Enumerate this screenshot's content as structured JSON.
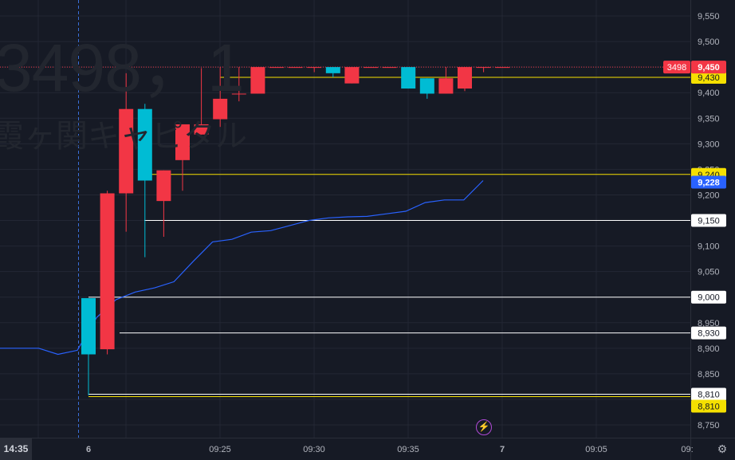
{
  "watermark": {
    "ticker": "3498，1",
    "name": "霞ヶ関キャピタル"
  },
  "colors": {
    "background": "#161a25",
    "grid": "#232734",
    "axis_text": "#b2b5be",
    "up": "#f23645",
    "down": "#00bcd4",
    "vwap": "#2962ff",
    "hline_white": "#ffffff",
    "hline_yellow": "#f5e000",
    "current_price_line": "#f23645"
  },
  "left_time_label": "14:35",
  "icons": {
    "bolt": "lightning-icon",
    "settings": "gear-icon"
  },
  "chart_data": {
    "type": "candlestick",
    "title": "",
    "y_ticks": [
      8750,
      8800,
      8850,
      8900,
      8950,
      9000,
      9050,
      9100,
      9150,
      9200,
      9250,
      9300,
      9350,
      9400,
      9450,
      9500,
      9550
    ],
    "y_tick_labels": [
      "8,750",
      "8,800",
      "8,850",
      "8,900",
      "8,950",
      "9,000",
      "9,050",
      "9,100",
      "9,150",
      "9,200",
      "9,250",
      "9,300",
      "9,350",
      "9,400",
      "9,450",
      "9,500",
      "9,550"
    ],
    "ylim": [
      8735,
      9565
    ],
    "x_labels": [
      "6",
      "09:25",
      "09:30",
      "09:35",
      "7",
      "09:05",
      "09:"
    ],
    "grid": true,
    "candles": [
      {
        "o": 8998,
        "h": 8998,
        "l": 8808,
        "c": 8888
      },
      {
        "o": 8898,
        "h": 9208,
        "l": 8888,
        "c": 9203
      },
      {
        "o": 9203,
        "h": 9438,
        "l": 9128,
        "c": 9368
      },
      {
        "o": 9368,
        "h": 9378,
        "l": 9078,
        "c": 9228
      },
      {
        "o": 9188,
        "h": 9248,
        "l": 9118,
        "c": 9248
      },
      {
        "o": 9268,
        "h": 9338,
        "l": 9208,
        "c": 9338
      },
      {
        "o": 9318,
        "h": 9448,
        "l": 9318,
        "c": 9338
      },
      {
        "o": 9348,
        "h": 9450,
        "l": 9333,
        "c": 9388
      },
      {
        "o": 9398,
        "h": 9450,
        "l": 9383,
        "c": 9398
      },
      {
        "o": 9398,
        "h": 9450,
        "l": 9398,
        "c": 9450
      },
      {
        "o": 9450,
        "h": 9450,
        "l": 9450,
        "c": 9450
      },
      {
        "o": 9450,
        "h": 9450,
        "l": 9450,
        "c": 9450
      },
      {
        "o": 9450,
        "h": 9450,
        "l": 9440,
        "c": 9450
      },
      {
        "o": 9450,
        "h": 9450,
        "l": 9430,
        "c": 9438
      },
      {
        "o": 9418,
        "h": 9450,
        "l": 9418,
        "c": 9450
      },
      {
        "o": 9450,
        "h": 9450,
        "l": 9450,
        "c": 9450
      },
      {
        "o": 9450,
        "h": 9450,
        "l": 9450,
        "c": 9450
      },
      {
        "o": 9450,
        "h": 9450,
        "l": 9408,
        "c": 9408
      },
      {
        "o": 9428,
        "h": 9428,
        "l": 9388,
        "c": 9398
      },
      {
        "o": 9398,
        "h": 9450,
        "l": 9398,
        "c": 9428
      },
      {
        "o": 9408,
        "h": 9450,
        "l": 9403,
        "c": 9450
      },
      {
        "o": 9450,
        "h": 9450,
        "l": 9440,
        "c": 9450
      },
      {
        "o": 9450,
        "h": 9450,
        "l": 9450,
        "c": 9450
      }
    ],
    "vwap": [
      8900,
      8900,
      8900,
      8888,
      8896,
      8960,
      8995,
      9010,
      9018,
      9030,
      9070,
      9108,
      9113,
      9127,
      9130,
      9140,
      9150,
      9155,
      9157,
      9158,
      9163,
      9168,
      9185,
      9190,
      9190,
      9228
    ],
    "horizontal_lines": [
      {
        "value": 9430,
        "color": "yellow",
        "label": "9,430"
      },
      {
        "value": 9240,
        "color": "yellow",
        "label": "9,240"
      },
      {
        "value": 9150,
        "color": "white",
        "label": "9,150"
      },
      {
        "value": 9000,
        "color": "white",
        "label": "9,000"
      },
      {
        "value": 8930,
        "color": "white",
        "label": "8,930"
      },
      {
        "value": 8810,
        "color": "white",
        "label": "8,810"
      },
      {
        "value": 8810,
        "color": "yellow",
        "label": "8,810"
      }
    ],
    "current_price": {
      "value": 9450,
      "label": "9,450",
      "symbol": "3498"
    },
    "vwap_last": {
      "value": 9228,
      "label": "9,228"
    }
  }
}
